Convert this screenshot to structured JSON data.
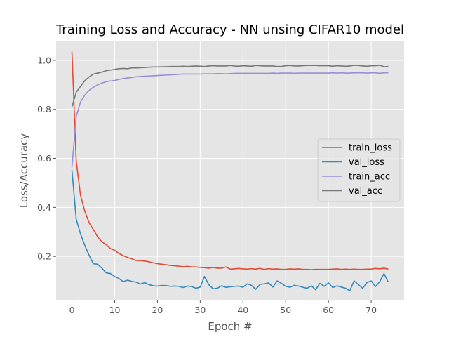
{
  "chart_data": {
    "type": "line",
    "title": "Training Loss and Accuracy - NN unsing CIFAR10 model",
    "xlabel": "Epoch #",
    "ylabel": "Loss/Accuracy",
    "xlim": [
      -3.7,
      77.7
    ],
    "ylim": [
      0.02,
      1.08
    ],
    "xticks": [
      0,
      10,
      20,
      30,
      40,
      50,
      60,
      70
    ],
    "yticks": [
      0.2,
      0.4,
      0.6,
      0.8,
      1.0
    ],
    "ytick_labels": [
      "0.2",
      "0.4",
      "0.6",
      "0.8",
      "1.0"
    ],
    "grid": true,
    "legend_position": "center-right",
    "background_color": "#e5e5e5",
    "grid_color": "#ffffff",
    "series": [
      {
        "name": "train_loss",
        "color": "#e24a33",
        "values": [
          1.035,
          0.59,
          0.45,
          0.385,
          0.338,
          0.31,
          0.28,
          0.26,
          0.248,
          0.232,
          0.225,
          0.212,
          0.203,
          0.196,
          0.19,
          0.183,
          0.183,
          0.181,
          0.178,
          0.174,
          0.17,
          0.168,
          0.166,
          0.163,
          0.162,
          0.16,
          0.158,
          0.159,
          0.157,
          0.157,
          0.155,
          0.154,
          0.152,
          0.155,
          0.152,
          0.152,
          0.157,
          0.148,
          0.149,
          0.151,
          0.149,
          0.148,
          0.15,
          0.148,
          0.151,
          0.147,
          0.15,
          0.148,
          0.149,
          0.147,
          0.147,
          0.149,
          0.148,
          0.149,
          0.147,
          0.147,
          0.146,
          0.147,
          0.147,
          0.147,
          0.147,
          0.148,
          0.149,
          0.147,
          0.148,
          0.147,
          0.148,
          0.147,
          0.147,
          0.148,
          0.148,
          0.151,
          0.149,
          0.152,
          0.148
        ]
      },
      {
        "name": "val_loss",
        "color": "#348abd",
        "values": [
          0.552,
          0.352,
          0.292,
          0.245,
          0.205,
          0.17,
          0.168,
          0.152,
          0.133,
          0.13,
          0.118,
          0.11,
          0.097,
          0.103,
          0.098,
          0.095,
          0.087,
          0.093,
          0.085,
          0.08,
          0.079,
          0.081,
          0.081,
          0.078,
          0.079,
          0.078,
          0.073,
          0.079,
          0.077,
          0.07,
          0.075,
          0.118,
          0.085,
          0.068,
          0.07,
          0.08,
          0.074,
          0.076,
          0.078,
          0.079,
          0.074,
          0.088,
          0.082,
          0.066,
          0.086,
          0.088,
          0.092,
          0.075,
          0.1,
          0.09,
          0.078,
          0.074,
          0.082,
          0.079,
          0.074,
          0.07,
          0.08,
          0.064,
          0.09,
          0.078,
          0.092,
          0.073,
          0.08,
          0.075,
          0.07,
          0.06,
          0.1,
          0.085,
          0.07,
          0.093,
          0.1,
          0.077,
          0.097,
          0.13,
          0.095
        ]
      },
      {
        "name": "train_acc",
        "color": "#988ed5",
        "values": [
          0.565,
          0.77,
          0.83,
          0.858,
          0.877,
          0.89,
          0.9,
          0.907,
          0.913,
          0.916,
          0.918,
          0.922,
          0.926,
          0.928,
          0.93,
          0.933,
          0.934,
          0.935,
          0.936,
          0.937,
          0.938,
          0.939,
          0.94,
          0.941,
          0.942,
          0.943,
          0.944,
          0.944,
          0.944,
          0.944,
          0.944,
          0.945,
          0.945,
          0.945,
          0.946,
          0.946,
          0.945,
          0.946,
          0.947,
          0.947,
          0.947,
          0.947,
          0.947,
          0.947,
          0.947,
          0.947,
          0.947,
          0.948,
          0.947,
          0.948,
          0.948,
          0.948,
          0.947,
          0.948,
          0.948,
          0.948,
          0.948,
          0.948,
          0.948,
          0.948,
          0.948,
          0.949,
          0.948,
          0.949,
          0.948,
          0.948,
          0.949,
          0.949,
          0.949,
          0.948,
          0.949,
          0.949,
          0.947,
          0.949,
          0.949
        ]
      },
      {
        "name": "val_acc",
        "color": "#777777",
        "values": [
          0.81,
          0.87,
          0.893,
          0.917,
          0.932,
          0.944,
          0.948,
          0.952,
          0.958,
          0.96,
          0.963,
          0.966,
          0.967,
          0.966,
          0.969,
          0.969,
          0.97,
          0.971,
          0.972,
          0.973,
          0.973,
          0.974,
          0.974,
          0.975,
          0.975,
          0.975,
          0.976,
          0.975,
          0.976,
          0.977,
          0.976,
          0.975,
          0.977,
          0.978,
          0.977,
          0.977,
          0.977,
          0.979,
          0.977,
          0.976,
          0.978,
          0.977,
          0.976,
          0.979,
          0.978,
          0.977,
          0.977,
          0.977,
          0.975,
          0.975,
          0.978,
          0.979,
          0.977,
          0.977,
          0.978,
          0.979,
          0.979,
          0.979,
          0.978,
          0.978,
          0.978,
          0.976,
          0.978,
          0.977,
          0.976,
          0.977,
          0.98,
          0.979,
          0.977,
          0.976,
          0.978,
          0.978,
          0.98,
          0.974,
          0.975
        ]
      }
    ]
  }
}
